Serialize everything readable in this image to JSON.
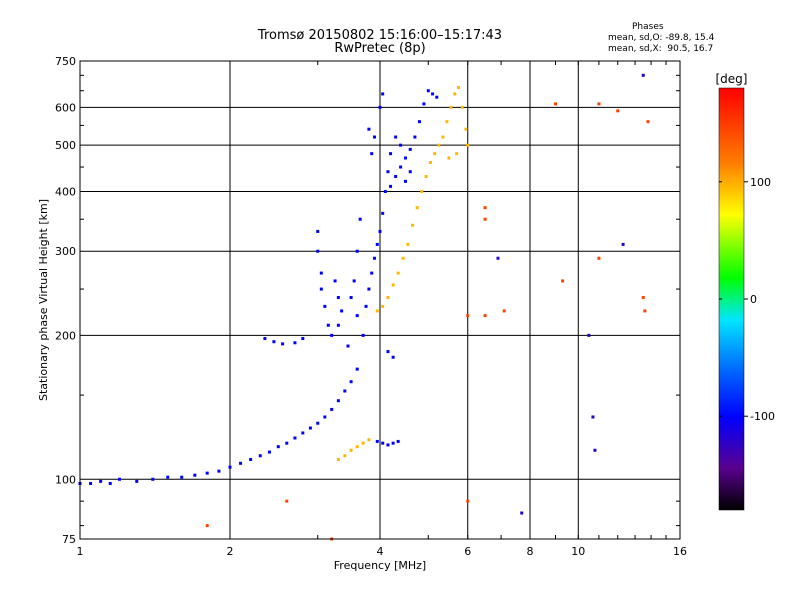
{
  "header": {
    "title_line1": "Tromsø 20150802 15:16:00–15:17:43",
    "title_line2": "RwPretec (8p)"
  },
  "phases": {
    "title": "Phases",
    "o_line": "mean, sd,O: -89.8, 15.4",
    "x_line": "mean, sd,X:  90.5, 16.7"
  },
  "chart_data": {
    "type": "scatter",
    "xlabel": "Frequency [MHz]",
    "ylabel": "Stationary phase Virtual Height [km]",
    "xscale": "log",
    "yscale": "log",
    "xlim": [
      1,
      16
    ],
    "ylim": [
      75,
      750
    ],
    "x_ticks": [
      1,
      2,
      4,
      6,
      8,
      10,
      16
    ],
    "y_ticks": [
      75,
      100,
      200,
      300,
      400,
      500,
      600,
      750
    ],
    "grid": true,
    "colorbar": {
      "label": "[deg]",
      "range": [
        -180,
        180
      ],
      "ticks": [
        100,
        0,
        -100
      ],
      "colormap": "rainbow"
    },
    "series": [
      {
        "trace": "O-mode",
        "phase": -100,
        "points": [
          [
            1.0,
            98
          ],
          [
            1.05,
            98
          ],
          [
            1.1,
            99
          ],
          [
            1.15,
            98
          ],
          [
            1.2,
            100
          ],
          [
            1.3,
            99
          ],
          [
            1.4,
            100
          ],
          [
            1.5,
            101
          ],
          [
            1.6,
            101
          ],
          [
            1.7,
            102
          ],
          [
            1.8,
            103
          ],
          [
            1.9,
            104
          ],
          [
            2.0,
            106
          ],
          [
            2.1,
            108
          ],
          [
            2.2,
            110
          ],
          [
            2.3,
            112
          ],
          [
            2.4,
            114
          ],
          [
            2.5,
            117
          ],
          [
            2.6,
            119
          ],
          [
            2.7,
            122
          ],
          [
            2.8,
            125
          ],
          [
            2.9,
            128
          ],
          [
            3.0,
            131
          ],
          [
            3.1,
            135
          ],
          [
            3.2,
            140
          ],
          [
            3.3,
            146
          ],
          [
            3.4,
            153
          ],
          [
            3.5,
            160
          ],
          [
            3.6,
            170
          ],
          [
            2.35,
            197
          ],
          [
            2.45,
            194
          ],
          [
            2.55,
            192
          ],
          [
            2.7,
            193
          ],
          [
            2.8,
            197
          ],
          [
            3.0,
            330
          ],
          [
            3.0,
            300
          ],
          [
            3.05,
            270
          ],
          [
            3.05,
            250
          ],
          [
            3.1,
            230
          ],
          [
            3.15,
            210
          ],
          [
            3.2,
            200
          ],
          [
            3.25,
            260
          ],
          [
            3.3,
            240
          ],
          [
            3.3,
            210
          ],
          [
            3.35,
            225
          ],
          [
            3.45,
            190
          ],
          [
            3.5,
            240
          ],
          [
            3.55,
            260
          ],
          [
            3.6,
            300
          ],
          [
            3.65,
            350
          ],
          [
            3.6,
            220
          ],
          [
            3.7,
            200
          ],
          [
            3.75,
            230
          ],
          [
            3.8,
            250
          ],
          [
            3.85,
            270
          ],
          [
            3.9,
            290
          ],
          [
            3.95,
            310
          ],
          [
            4.0,
            330
          ],
          [
            4.05,
            360
          ],
          [
            4.1,
            400
          ],
          [
            4.15,
            440
          ],
          [
            4.2,
            480
          ],
          [
            4.3,
            520
          ],
          [
            4.4,
            500
          ],
          [
            4.5,
            470
          ],
          [
            4.6,
            490
          ],
          [
            4.7,
            520
          ],
          [
            4.8,
            560
          ],
          [
            4.9,
            610
          ],
          [
            5.0,
            650
          ],
          [
            5.1,
            640
          ],
          [
            5.2,
            630
          ],
          [
            4.05,
            640
          ],
          [
            4.0,
            600
          ],
          [
            3.9,
            520
          ],
          [
            3.85,
            480
          ],
          [
            3.8,
            540
          ],
          [
            4.2,
            410
          ],
          [
            4.3,
            430
          ],
          [
            4.4,
            450
          ],
          [
            4.5,
            420
          ],
          [
            4.6,
            440
          ],
          [
            4.15,
            185
          ],
          [
            4.25,
            180
          ],
          [
            3.95,
            120
          ],
          [
            4.05,
            119
          ],
          [
            4.15,
            118
          ],
          [
            4.25,
            119
          ],
          [
            4.35,
            120
          ]
        ]
      },
      {
        "trace": "X-mode",
        "phase": 100,
        "points": [
          [
            3.3,
            110
          ],
          [
            3.4,
            112
          ],
          [
            3.5,
            115
          ],
          [
            3.6,
            117
          ],
          [
            3.7,
            119
          ],
          [
            3.8,
            121
          ],
          [
            3.95,
            225
          ],
          [
            4.05,
            230
          ],
          [
            4.15,
            240
          ],
          [
            4.25,
            255
          ],
          [
            4.35,
            270
          ],
          [
            4.45,
            290
          ],
          [
            4.55,
            310
          ],
          [
            4.65,
            340
          ],
          [
            4.75,
            370
          ],
          [
            4.85,
            400
          ],
          [
            4.95,
            430
          ],
          [
            5.05,
            460
          ],
          [
            5.15,
            480
          ],
          [
            5.25,
            500
          ],
          [
            5.35,
            520
          ],
          [
            5.45,
            560
          ],
          [
            5.55,
            600
          ],
          [
            5.65,
            640
          ],
          [
            5.75,
            660
          ],
          [
            5.85,
            600
          ],
          [
            5.95,
            540
          ],
          [
            6.0,
            500
          ],
          [
            5.7,
            480
          ],
          [
            5.5,
            470
          ]
        ]
      },
      {
        "trace": "scattered",
        "phase": 150,
        "points": [
          [
            6.0,
            220
          ],
          [
            6.5,
            220
          ],
          [
            7.1,
            225
          ],
          [
            6.5,
            350
          ],
          [
            6.5,
            370
          ],
          [
            9.3,
            260
          ],
          [
            11.0,
            290
          ],
          [
            13.5,
            240
          ],
          [
            13.6,
            225
          ],
          [
            9.0,
            610
          ],
          [
            11.0,
            610
          ],
          [
            12.0,
            590
          ],
          [
            13.8,
            560
          ],
          [
            6.0,
            90
          ],
          [
            2.6,
            90
          ],
          [
            1.8,
            80
          ],
          [
            3.2,
            75
          ]
        ]
      },
      {
        "trace": "scattered",
        "phase": -120,
        "points": [
          [
            10.5,
            200
          ],
          [
            10.7,
            135
          ],
          [
            10.8,
            115
          ],
          [
            12.3,
            310
          ],
          [
            13.5,
            700
          ],
          [
            7.7,
            85
          ],
          [
            6.9,
            290
          ]
        ]
      }
    ]
  }
}
